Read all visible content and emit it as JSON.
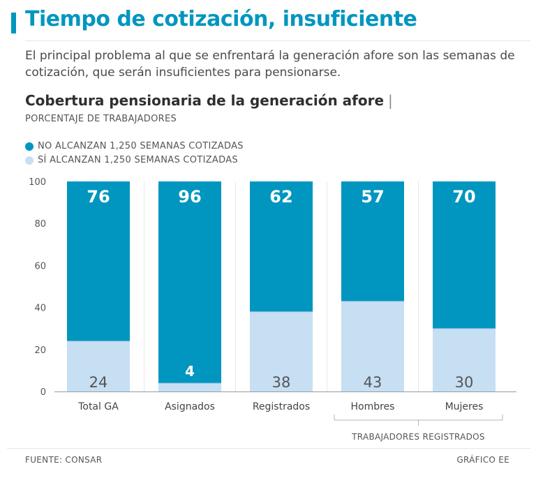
{
  "header": {
    "title": "Tiempo de cotización, insuficiente",
    "subtitle": "El principal problema al que se enfrentará la generación afore son las semanas de cotización, que serán insuficientes para pensionarse."
  },
  "footer": {
    "source": "FUENTE: CONSAR",
    "credit": "GRÁFICO EE"
  },
  "colors": {
    "accent": "#0096bf",
    "no_alcanzan": "#0096bf",
    "si_alcanzan": "#c7dff3"
  },
  "chart_data": {
    "type": "bar",
    "stacked": true,
    "title": "Cobertura pensionaria de la generación afore",
    "title_mark": "|",
    "subtitle": "PORCENTAJE DE TRABAJADORES",
    "categories": [
      "Total GA",
      "Asignados",
      "Registrados",
      "Hombres",
      "Mujeres"
    ],
    "series": [
      {
        "name": "NO ALCANZAN 1,250 SEMANAS COTIZADAS",
        "values": [
          76,
          96,
          62,
          57,
          70
        ],
        "labels": [
          "76",
          "96",
          "62",
          "57",
          "70"
        ]
      },
      {
        "name": "SÍ ALCANZAN 1,250 SEMANAS COTIZADAS",
        "values": [
          24,
          4,
          38,
          43,
          30
        ],
        "labels": [
          "24",
          "4",
          "38",
          "43",
          "30"
        ]
      }
    ],
    "ylim": [
      0,
      100
    ],
    "yticks": [
      "0",
      "20",
      "40",
      "60",
      "80",
      "100"
    ],
    "group_label": "TRABAJADORES REGISTRADOS",
    "group_members": [
      "Hombres",
      "Mujeres"
    ],
    "legend_position": "top-left"
  }
}
